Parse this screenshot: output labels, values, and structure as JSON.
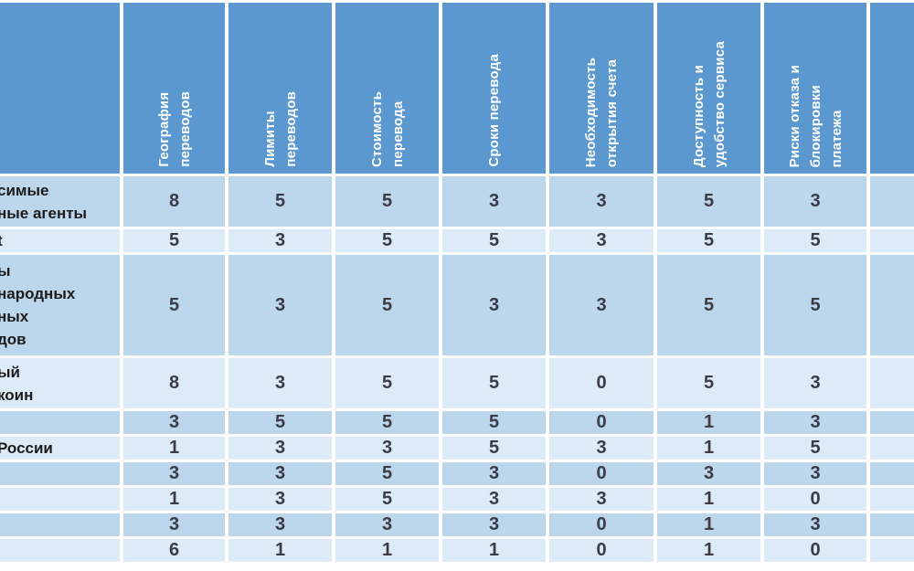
{
  "colors": {
    "header_bg": "#5b98d0",
    "row_band_dark": "#bcd6ec",
    "row_band_light": "#dcebf7",
    "gridline": "#ffffff",
    "header_text": "#ffffff",
    "value_text": "#3b3c45",
    "label_text": "#1b1b1b"
  },
  "chart_data": {
    "type": "table",
    "columns": [
      "География\nпереводов",
      "Лимиты\nпереводов",
      "Стоимость\nперевода",
      "Сроки перевода",
      "Необходимость\nоткрытия счета",
      "Доступность и\nудобство сервиса",
      "Риски отказа и\nблокировки\nплатежа",
      ""
    ],
    "row_labels": [
      "симые\nные агенты",
      "t",
      "ы\nнародных\nных\nдов",
      "ый\nкоин",
      "",
      "России",
      "",
      "",
      "",
      ""
    ],
    "rows": [
      [
        8,
        5,
        5,
        3,
        3,
        5,
        3,
        ""
      ],
      [
        5,
        3,
        5,
        5,
        3,
        5,
        5,
        ""
      ],
      [
        5,
        3,
        5,
        3,
        3,
        5,
        5,
        ""
      ],
      [
        8,
        3,
        5,
        5,
        0,
        5,
        3,
        ""
      ],
      [
        3,
        5,
        5,
        5,
        0,
        1,
        3,
        ""
      ],
      [
        1,
        3,
        3,
        5,
        3,
        1,
        5,
        ""
      ],
      [
        3,
        3,
        5,
        3,
        0,
        3,
        3,
        ""
      ],
      [
        1,
        3,
        5,
        3,
        3,
        1,
        0,
        ""
      ],
      [
        3,
        3,
        3,
        3,
        0,
        1,
        3,
        ""
      ],
      [
        6,
        1,
        1,
        1,
        0,
        1,
        0,
        ""
      ]
    ]
  }
}
